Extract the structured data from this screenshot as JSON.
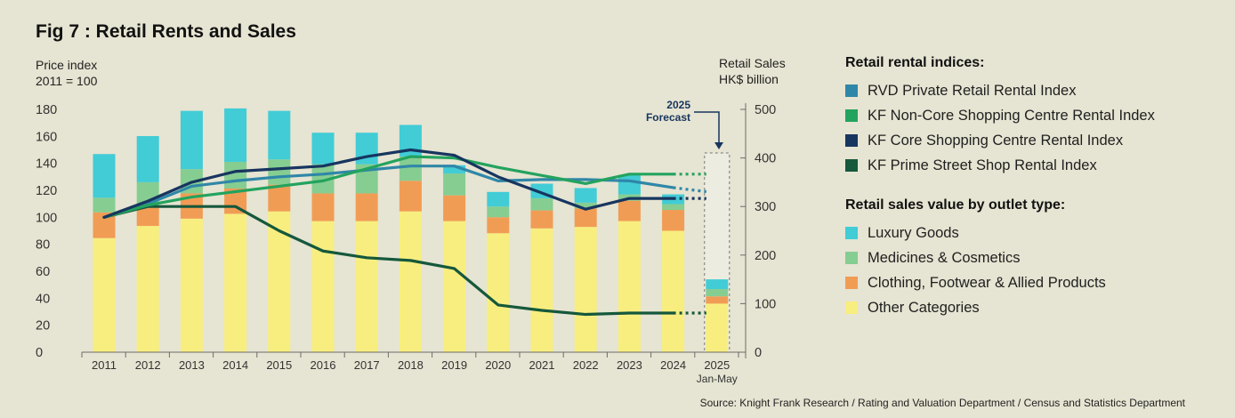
{
  "header": {
    "title": "Fig 7 : Retail Rents and Sales",
    "left_axis_label": [
      "Price index",
      "2011  = 100"
    ],
    "right_axis_label": [
      "Retail Sales",
      "HK$ billion"
    ],
    "source": "Source: Knight Frank Research / Rating and Valuation Department / Census and Statistics Department"
  },
  "legend": {
    "rental_title": "Retail rental indices:",
    "sales_title": "Retail sales value by outlet type:",
    "rental_items": [
      {
        "label": "RVD Private Retail Rental Index",
        "color": "#2f87a8"
      },
      {
        "label": "KF Non-Core Shopping Centre Rental Index",
        "color": "#23a35e"
      },
      {
        "label": "KF Core Shopping Centre Rental Index",
        "color": "#17355f"
      },
      {
        "label": "KF Prime Street Shop Rental Index",
        "color": "#15583c"
      }
    ],
    "sales_items": [
      {
        "label": "Luxury Goods",
        "color": "#41ccd6"
      },
      {
        "label": "Medicines & Cosmetics",
        "color": "#86cd92"
      },
      {
        "label": "Clothing, Footwear & Allied Products",
        "color": "#f19c55"
      },
      {
        "label": "Other Categories",
        "color": "#f8ee7f"
      }
    ]
  },
  "chart_data": {
    "type": "bar",
    "title": "Fig 7 : Retail Rents and Sales",
    "categories": [
      "2011",
      "2012",
      "2013",
      "2014",
      "2015",
      "2016",
      "2017",
      "2018",
      "2019",
      "2020",
      "2021",
      "2022",
      "2023",
      "2024",
      "2025"
    ],
    "category_sublabels": {
      "2025": "Jan-May"
    },
    "forecast_label": [
      "2025",
      "Forecast"
    ],
    "y_left": {
      "label": "Price index, 2011 = 100",
      "ticks": [
        0,
        20,
        40,
        60,
        80,
        100,
        120,
        140,
        160,
        180
      ],
      "range": [
        0,
        180
      ]
    },
    "y_right": {
      "label": "Retail Sales HK$ billion",
      "ticks": [
        0,
        100,
        200,
        300,
        400,
        500
      ],
      "range": [
        0,
        500
      ]
    },
    "stacked_bars_right_axis": [
      {
        "name": "Other Categories",
        "color": "#f8ee7f",
        "values": [
          235,
          260,
          275,
          285,
          290,
          270,
          270,
          290,
          270,
          245,
          255,
          258,
          270,
          250,
          100
        ]
      },
      {
        "name": "Clothing, Footwear & Allied Products",
        "color": "#f19c55",
        "values": [
          53,
          40,
          52,
          52,
          55,
          57,
          57,
          63,
          53,
          33,
          37,
          38,
          42,
          43,
          15
        ]
      },
      {
        "name": "Medicines & Cosmetics",
        "color": "#86cd92",
        "values": [
          30,
          50,
          50,
          55,
          52,
          60,
          60,
          50,
          45,
          22,
          25,
          12,
          13,
          12,
          15
        ]
      },
      {
        "name": "Luxury Goods",
        "color": "#41ccd6",
        "values": [
          90,
          95,
          120,
          110,
          100,
          65,
          65,
          65,
          17,
          30,
          30,
          30,
          40,
          20,
          20
        ]
      }
    ],
    "lines_left_axis": [
      {
        "name": "KF Prime Street Shop Rental Index",
        "color": "#15583c",
        "values": [
          100,
          108,
          108,
          108,
          90,
          75,
          70,
          68,
          62,
          35,
          31,
          28,
          29,
          29,
          29
        ]
      },
      {
        "name": "RVD Private Retail Rental Index",
        "color": "#2f87a8",
        "values": [
          100,
          110,
          123,
          127,
          130,
          132,
          135,
          138,
          138,
          127,
          128,
          128,
          127,
          122,
          119
        ]
      },
      {
        "name": "KF Non-Core Shopping Centre Rental Index",
        "color": "#23a35e",
        "values": [
          100,
          109,
          115,
          119,
          123,
          127,
          136,
          145,
          144,
          137,
          131,
          125,
          132,
          132,
          132
        ]
      },
      {
        "name": "KF Core Shopping Centre Rental Index",
        "color": "#17355f",
        "values": [
          100,
          112,
          126,
          134,
          136,
          138,
          145,
          150,
          146,
          130,
          118,
          106,
          114,
          114,
          114
        ]
      }
    ]
  }
}
